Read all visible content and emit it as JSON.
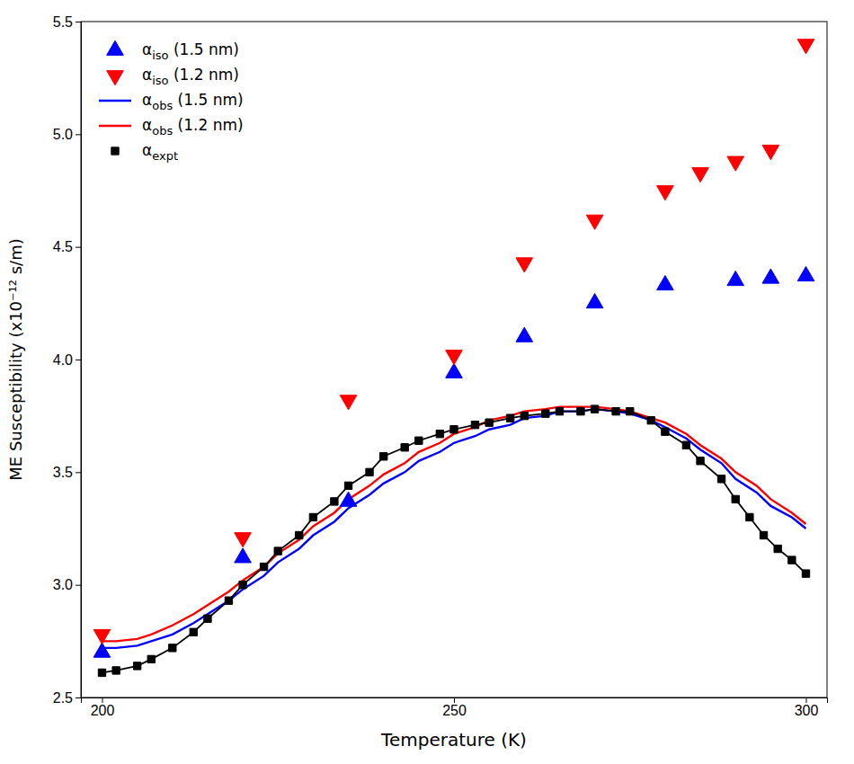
{
  "chart_data": {
    "type": "line",
    "xlabel": "Temperature (K)",
    "ylabel": "ME Susceptibility (x10⁻¹² s/m)",
    "xlim": [
      197,
      303
    ],
    "ylim": [
      2.5,
      5.5
    ],
    "xticks": [
      200,
      250,
      300
    ],
    "yticks": [
      2.5,
      {
        "value": 3,
        "label": "3.0"
      },
      3.5,
      {
        "value": 4,
        "label": "4.0"
      },
      4.5,
      {
        "value": 5,
        "label": "5.0"
      },
      5.5
    ],
    "grid": false,
    "legend": "upper left",
    "series": [
      {
        "name": "αiso (1.5 nm)",
        "type": "scatter",
        "marker": "triangle-up",
        "color": "#0000ff",
        "x": [
          200,
          220,
          235,
          250,
          260,
          270,
          280,
          290,
          295,
          300
        ],
        "values": [
          2.7,
          3.12,
          3.37,
          3.94,
          4.1,
          4.25,
          4.33,
          4.35,
          4.36,
          4.37
        ]
      },
      {
        "name": "αiso (1.2 nm)",
        "type": "scatter",
        "marker": "triangle-down",
        "color": "#ff0000",
        "x": [
          200,
          220,
          235,
          250,
          260,
          270,
          280,
          285,
          290,
          295,
          300
        ],
        "values": [
          2.78,
          3.21,
          3.82,
          4.02,
          4.43,
          4.62,
          4.75,
          4.83,
          4.88,
          4.93,
          5.4
        ]
      },
      {
        "name": "αobs (1.5 nm)",
        "type": "line",
        "color": "#0000ff",
        "x": [
          200,
          202,
          205,
          207,
          210,
          213,
          215,
          218,
          220,
          223,
          225,
          228,
          230,
          233,
          235,
          238,
          240,
          243,
          245,
          248,
          250,
          253,
          255,
          258,
          260,
          263,
          265,
          268,
          270,
          273,
          275,
          278,
          280,
          283,
          285,
          288,
          290,
          293,
          295,
          298,
          300
        ],
        "values": [
          2.72,
          2.72,
          2.73,
          2.75,
          2.78,
          2.83,
          2.87,
          2.93,
          2.98,
          3.04,
          3.1,
          3.16,
          3.22,
          3.28,
          3.34,
          3.4,
          3.45,
          3.5,
          3.55,
          3.59,
          3.63,
          3.66,
          3.69,
          3.71,
          3.74,
          3.75,
          3.77,
          3.77,
          3.78,
          3.77,
          3.76,
          3.73,
          3.7,
          3.65,
          3.6,
          3.54,
          3.47,
          3.41,
          3.35,
          3.3,
          3.25
        ]
      },
      {
        "name": "αobs (1.2 nm)",
        "type": "line",
        "color": "#ff0000",
        "x": [
          200,
          202,
          205,
          207,
          210,
          213,
          215,
          218,
          220,
          223,
          225,
          228,
          230,
          233,
          235,
          238,
          240,
          243,
          245,
          248,
          250,
          253,
          255,
          258,
          260,
          263,
          265,
          268,
          270,
          273,
          275,
          278,
          280,
          283,
          285,
          288,
          290,
          293,
          295,
          298,
          300
        ],
        "values": [
          2.75,
          2.75,
          2.76,
          2.78,
          2.82,
          2.87,
          2.91,
          2.97,
          3.02,
          3.08,
          3.14,
          3.2,
          3.26,
          3.32,
          3.38,
          3.44,
          3.49,
          3.54,
          3.59,
          3.63,
          3.67,
          3.7,
          3.73,
          3.75,
          3.77,
          3.78,
          3.79,
          3.79,
          3.79,
          3.78,
          3.77,
          3.74,
          3.72,
          3.67,
          3.62,
          3.56,
          3.5,
          3.44,
          3.38,
          3.32,
          3.27
        ]
      },
      {
        "name": "αexpt",
        "type": "line",
        "marker": "square",
        "color": "#000000",
        "x": [
          200,
          202,
          205,
          207,
          210,
          213,
          215,
          218,
          220,
          223,
          225,
          228,
          230,
          233,
          235,
          238,
          240,
          243,
          245,
          248,
          250,
          253,
          255,
          258,
          260,
          263,
          265,
          268,
          270,
          273,
          275,
          278,
          280,
          283,
          285,
          288,
          290,
          292,
          294,
          296,
          298,
          300
        ],
        "values": [
          2.61,
          2.62,
          2.64,
          2.67,
          2.72,
          2.79,
          2.85,
          2.93,
          3.0,
          3.08,
          3.15,
          3.22,
          3.3,
          3.37,
          3.44,
          3.5,
          3.57,
          3.61,
          3.64,
          3.67,
          3.69,
          3.71,
          3.72,
          3.74,
          3.75,
          3.76,
          3.77,
          3.77,
          3.78,
          3.77,
          3.77,
          3.73,
          3.68,
          3.62,
          3.55,
          3.47,
          3.38,
          3.3,
          3.22,
          3.16,
          3.11,
          3.05
        ]
      }
    ]
  }
}
